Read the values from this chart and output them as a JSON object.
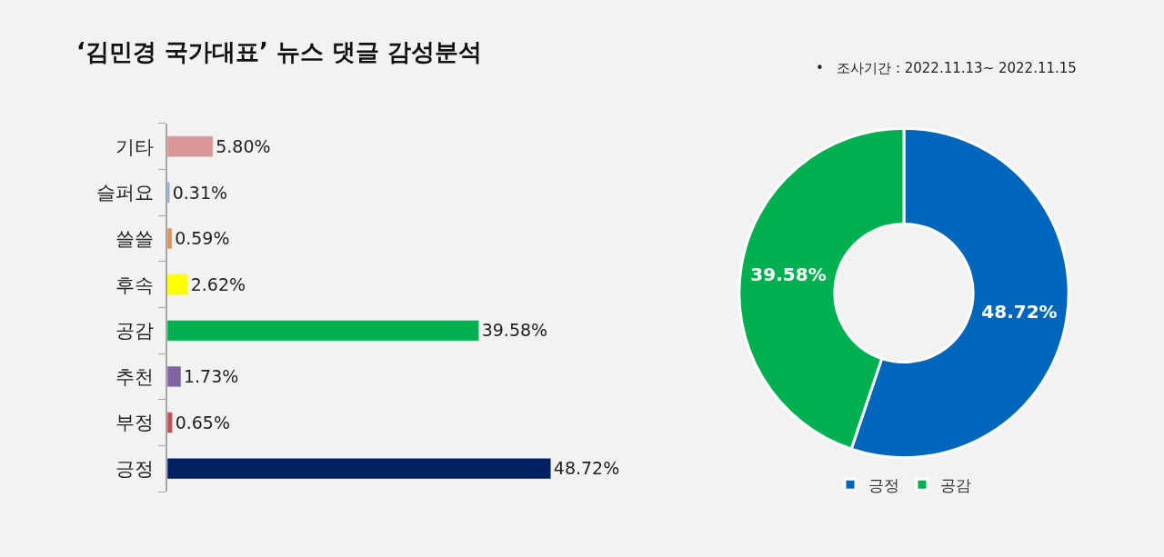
{
  "chart_data": [
    {
      "type": "bar",
      "title": "‘김민경 국가대표’ 뉴스 댓글 감성분석",
      "orientation": "horizontal",
      "categories": [
        "기타",
        "슬퍼요",
        "쓸쓸",
        "후속",
        "공감",
        "추천",
        "부정",
        "긍정"
      ],
      "values": [
        5.8,
        0.31,
        0.59,
        2.62,
        39.58,
        1.73,
        0.65,
        48.72
      ],
      "colors": [
        "#d99694",
        "#8ea9db",
        "#e0925a",
        "#ffff00",
        "#00b050",
        "#8064a2",
        "#c0504d",
        "#002060"
      ],
      "value_labels": [
        "5.80%",
        "0.31%",
        "0.59%",
        "2.62%",
        "39.58%",
        "1.73%",
        "0.65%",
        "48.72%"
      ],
      "tick_labels": "y",
      "grid": false,
      "legend": false
    },
    {
      "type": "donut",
      "annotations": [
        "•   조사기간 : 2022.11.13~ 2022.11.15"
      ],
      "categories": [
        "긍정",
        "공감"
      ],
      "values": [
        48.72,
        39.58
      ],
      "colors": [
        "#0066bb",
        "#00b050"
      ],
      "value_labels": [
        "48.72%",
        "39.58%"
      ],
      "legend": "bottom"
    }
  ]
}
